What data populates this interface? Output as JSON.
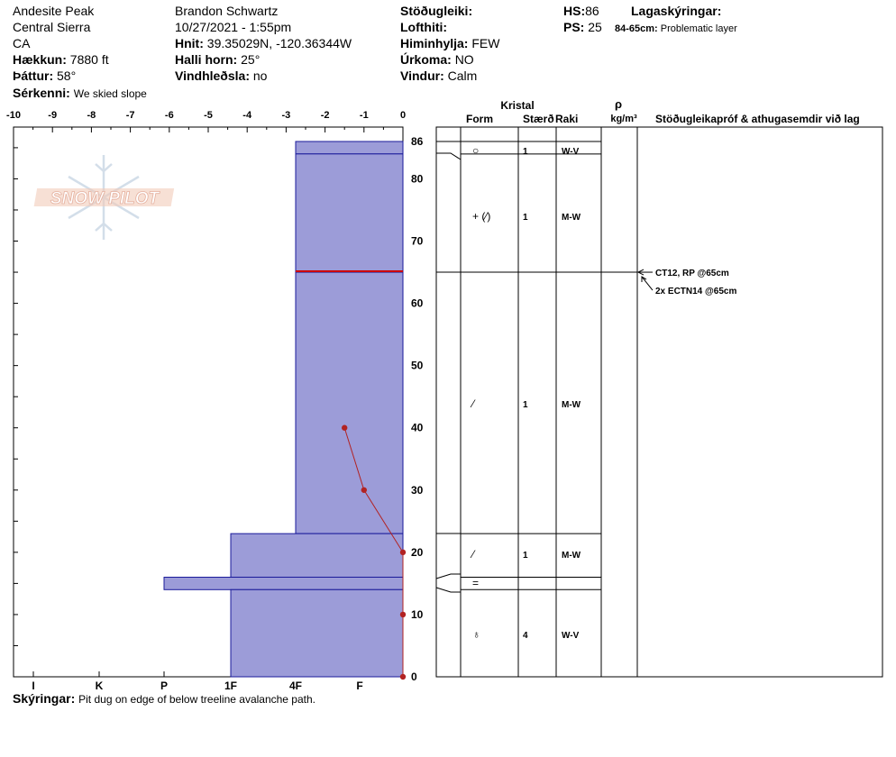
{
  "header": {
    "location": "Andesite Peak",
    "range": "Central Sierra",
    "state": "CA",
    "elevation_label": "Hækkun:",
    "elevation_value": "7880 ft",
    "aspect_label": "Þáttur:",
    "aspect_value": "58°",
    "features_label": "Sérkenni:",
    "features_value": "We skied slope",
    "observer": "Brandon Schwartz",
    "datetime": "10/27/2021 - 1:55pm",
    "coords_label": "Hnit:",
    "coords_value": "39.35029N, -120.36344W",
    "slope_label": "Halli horn:",
    "slope_value": "25°",
    "wind_loading_label": "Vindhleðsla:",
    "wind_loading_value": "no",
    "stability_label": "Stöðugleiki:",
    "air_temp_label": "Lofthiti:",
    "sky_label": "Himinhylja:",
    "sky_value": "FEW",
    "precip_label": "Úrkoma:",
    "precip_value": "NO",
    "wind_label": "Vindur:",
    "wind_value": "Calm",
    "hs_label": "HS:",
    "hs_value": "86",
    "ps_label": "PS:",
    "ps_value": "25",
    "layer_notes_label": "Lagaskýringar:",
    "layer_note_range": "84-65cm:",
    "layer_note_text": "Problematic layer"
  },
  "footer": {
    "notes_label": "Skýringar:",
    "notes_value": "Pit dug on edge of below treeline avalanche path."
  },
  "logo_text": "SNOW PILOT",
  "colors": {
    "layer_fill": "#9c9cd8",
    "layer_stroke": "#1a1a9a",
    "temp_line": "#b22222",
    "problem_line": "#cc0000"
  },
  "table": {
    "header_kristal": "Kristal",
    "header_form": "Form",
    "header_size": "Stærð",
    "header_moisture": "Raki",
    "header_rho": "ρ",
    "header_density_unit": "kg/m³",
    "header_tests": "Stöðugleikapróf & athugasemdir við lag",
    "rows": [
      {
        "top": 86,
        "bottom": 84,
        "form": "",
        "size": "",
        "moisture": ""
      },
      {
        "top": 84,
        "bottom": 65,
        "form": "+ (⁄)",
        "size": "1",
        "moisture": "M-W"
      },
      {
        "top": 65,
        "bottom": 23,
        "form": "⁄",
        "size": "1",
        "moisture": "M-W"
      },
      {
        "top": 23,
        "bottom": 16,
        "form": "⁄",
        "size": "1",
        "moisture": "M-W"
      },
      {
        "top": 16,
        "bottom": 14,
        "form": "=",
        "size": "",
        "moisture": ""
      },
      {
        "top": 14,
        "bottom": 0,
        "form": "♁",
        "size": "4",
        "moisture": "W-V"
      }
    ],
    "top_row_form": "○",
    "top_row_size": "1",
    "top_row_moisture": "W-V"
  },
  "tests": [
    {
      "depth": 65,
      "text": "CT12, RP @65cm"
    },
    {
      "depth": 65,
      "text": "2x ECTN14 @65cm"
    }
  ],
  "chart_data": {
    "type": "area",
    "title": "",
    "x_axis_top": {
      "range": [
        -10,
        0
      ],
      "ticks": [
        "-10",
        "-9",
        "-8",
        "-7",
        "-6",
        "-5",
        "-4",
        "-3",
        "-2",
        "-1",
        "0"
      ]
    },
    "x_axis_bottom": {
      "hardness_labels": [
        "I",
        "K",
        "P",
        "1F",
        "4F",
        "F"
      ]
    },
    "y_axis": {
      "range": [
        0,
        86
      ],
      "ticks": [
        0,
        10,
        20,
        30,
        40,
        50,
        60,
        70,
        80,
        86
      ]
    },
    "hardness_layers": [
      {
        "top": 86,
        "bottom": 84,
        "hardness": "4F"
      },
      {
        "top": 84,
        "bottom": 65,
        "hardness": "4F"
      },
      {
        "top": 65,
        "bottom": 23,
        "hardness": "4F"
      },
      {
        "top": 23,
        "bottom": 16,
        "hardness": "1F"
      },
      {
        "top": 16,
        "bottom": 14,
        "hardness": "P"
      },
      {
        "top": 14,
        "bottom": 0,
        "hardness": "1F"
      }
    ],
    "problematic_layer_depth": 65,
    "temperature_profile": [
      {
        "depth": 40,
        "temp": -1.5
      },
      {
        "depth": 30,
        "temp": -1.0
      },
      {
        "depth": 20,
        "temp": 0
      },
      {
        "depth": 10,
        "temp": 0
      },
      {
        "depth": 0,
        "temp": 0
      }
    ]
  }
}
